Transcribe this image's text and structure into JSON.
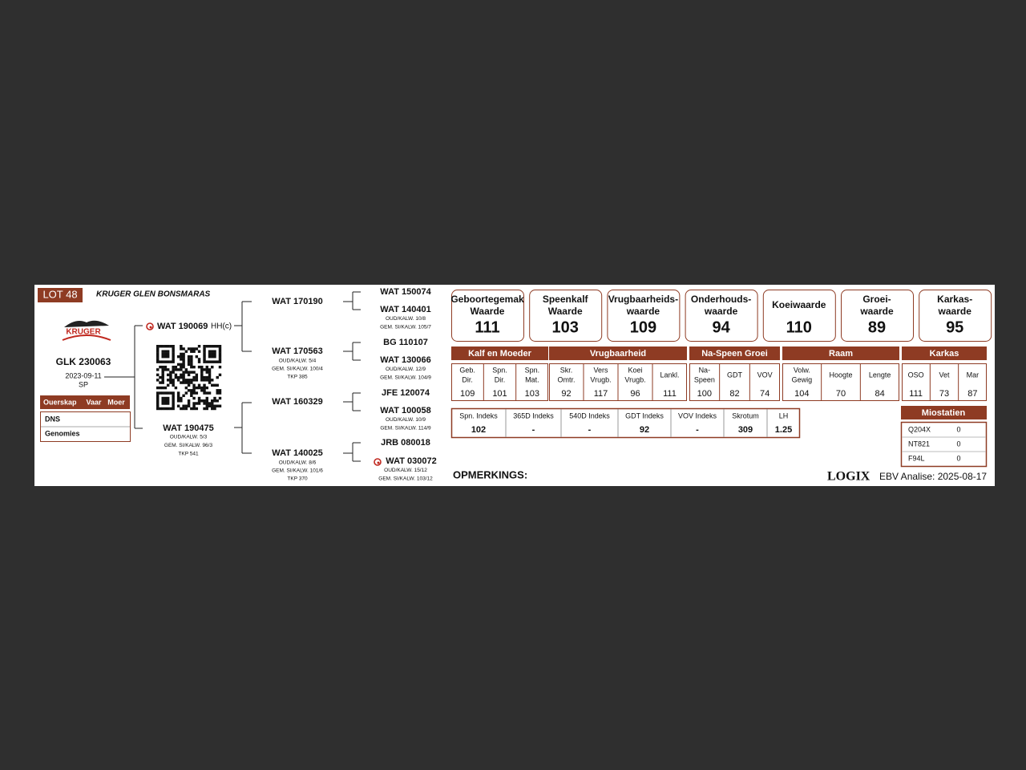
{
  "lot": "LOT 48",
  "breeder": "KRUGER GLEN BONSMARAS",
  "logo": "KRUGER",
  "animal": {
    "id": "GLK 230063",
    "born": "2023-09-11",
    "sex": "SP"
  },
  "parentage": {
    "headers": [
      "Ouerskap",
      "Vaar",
      "Moer"
    ],
    "rows": [
      "DNS",
      "Genomies"
    ]
  },
  "pedigree": {
    "sire": {
      "id": "WAT 190069",
      "note": "HH(c)"
    },
    "dam": {
      "id": "WAT 190475",
      "details": [
        "OUD/KALW. 5/3",
        "GEM. SI/KALW. 96/3",
        "TKP 541"
      ]
    },
    "grandparents": [
      {
        "id": "WAT 170190"
      },
      {
        "id": "WAT 170563",
        "details": [
          "OUD/KALW. 5/4",
          "GEM. SI/KALW. 100/4",
          "TKP 385"
        ]
      },
      {
        "id": "WAT 160329"
      },
      {
        "id": "WAT 140025",
        "details": [
          "OUD/KALW. 8/6",
          "GEM. SI/KALW. 101/6",
          "TKP 370"
        ]
      }
    ],
    "great_grandparents": [
      {
        "id": "WAT 150074"
      },
      {
        "id": "WAT 140401",
        "details": [
          "OUD/KALW. 10/8",
          "GEM. SI/KALW. 105/7"
        ]
      },
      {
        "id": "BG 110107"
      },
      {
        "id": "WAT 130066",
        "details": [
          "OUD/KALW. 12/9",
          "GEM. SI/KALW. 104/9"
        ]
      },
      {
        "id": "JFE 120074"
      },
      {
        "id": "WAT 100058",
        "details": [
          "OUD/KALW. 10/9",
          "GEM. SI/KALW. 114/9"
        ]
      },
      {
        "id": "JRB 080018"
      },
      {
        "id": "WAT 030072",
        "details": [
          "OUD/KALW. 15/12",
          "GEM. SI/KALW. 103/12"
        ]
      }
    ]
  },
  "indexes": [
    {
      "label": [
        "Geboortegemak",
        "Waarde"
      ],
      "value": 111
    },
    {
      "label": [
        "Speenkalf",
        "Waarde"
      ],
      "value": 103
    },
    {
      "label": [
        "Vrugbaarheids-",
        "waarde"
      ],
      "value": 109
    },
    {
      "label": [
        "Onderhouds-",
        "waarde"
      ],
      "value": 94
    },
    {
      "label": [
        "Koeiwaarde"
      ],
      "value": 110
    },
    {
      "label": [
        "Groei-",
        "waarde"
      ],
      "value": 89
    },
    {
      "label": [
        "Karkas-",
        "waarde"
      ],
      "value": 95
    }
  ],
  "ebv": {
    "groups": [
      {
        "name": "Kalf en Moeder",
        "columns": [
          {
            "label": [
              "Geb.",
              "Dir."
            ],
            "value": 109
          },
          {
            "label": [
              "Spn.",
              "Dir."
            ],
            "value": 101
          },
          {
            "label": [
              "Spn.",
              "Mat."
            ],
            "value": 103
          }
        ]
      },
      {
        "name": "Vrugbaarheid",
        "columns": [
          {
            "label": [
              "Skr.",
              "Omtr."
            ],
            "value": 92
          },
          {
            "label": [
              "Vers",
              "Vrugb."
            ],
            "value": 117
          },
          {
            "label": [
              "Koei",
              "Vrugb."
            ],
            "value": 96
          },
          {
            "label": [
              "Lankl."
            ],
            "value": 111
          }
        ]
      },
      {
        "name": "Na-Speen Groei",
        "columns": [
          {
            "label": [
              "Na-",
              "Speen"
            ],
            "value": 100
          },
          {
            "label": [
              "GDT"
            ],
            "value": 82
          },
          {
            "label": [
              "VOV"
            ],
            "value": 74
          }
        ]
      },
      {
        "name": "Raam",
        "columns": [
          {
            "label": [
              "Volw.",
              "Gewig"
            ],
            "value": 104
          },
          {
            "label": [
              "Hoogte"
            ],
            "value": 70
          },
          {
            "label": [
              "Lengte"
            ],
            "value": 84
          }
        ]
      },
      {
        "name": "Karkas",
        "columns": [
          {
            "label": [
              "OSO"
            ],
            "value": 111
          },
          {
            "label": [
              "Vet"
            ],
            "value": 73
          },
          {
            "label": [
              "Mar"
            ],
            "value": 87
          }
        ]
      }
    ]
  },
  "selection_indexes": [
    {
      "label": "Spn. Indeks",
      "value": 102
    },
    {
      "label": "365D Indeks",
      "value": "-"
    },
    {
      "label": "540D Indeks",
      "value": "-"
    },
    {
      "label": "GDT Indeks",
      "value": 92
    },
    {
      "label": "VOV Indeks",
      "value": "-"
    },
    {
      "label": "Skrotum",
      "value": 309
    },
    {
      "label": "LH",
      "value": 1.25
    }
  ],
  "myostatin": {
    "title": "Miostatien",
    "rows": [
      {
        "label": "Q204X",
        "value": 0
      },
      {
        "label": "NT821",
        "value": 0
      },
      {
        "label": "F94L",
        "value": 0
      }
    ]
  },
  "remarks": "OPMERKINGS:",
  "footer": {
    "brand": "LOGIX",
    "analysis": "EBV Analise: 2025-08-17"
  }
}
